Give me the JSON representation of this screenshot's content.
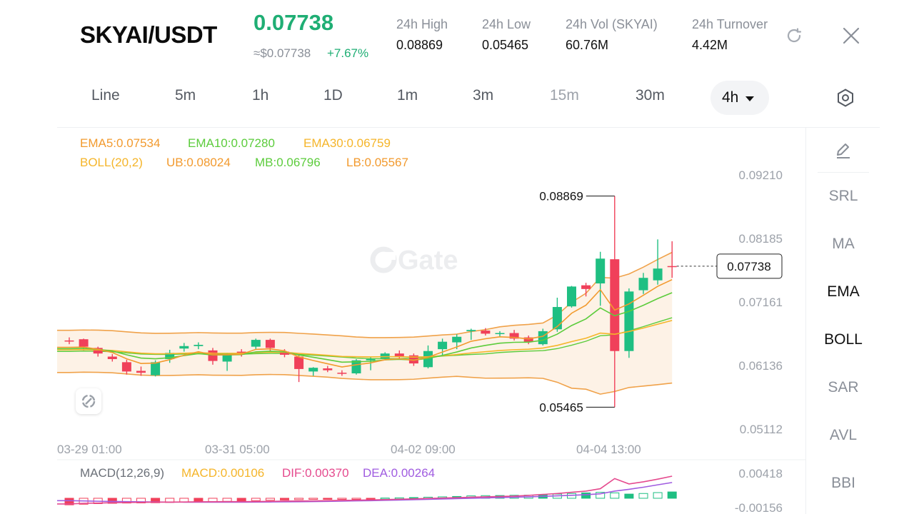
{
  "header": {
    "pair": "SKYAI/USDT",
    "price": "0.07738",
    "approx": "≈$0.07738",
    "change": "+7.67%",
    "stats": [
      {
        "label": "24h   High",
        "value": "0.08869"
      },
      {
        "label": "24h   Low",
        "value": "0.05465"
      },
      {
        "label": "24h   Vol (SKYAI)",
        "value": "60.76M"
      },
      {
        "label": "24h   Turnover",
        "value": "4.42M"
      }
    ],
    "icons": {
      "refresh": "refresh-icon",
      "close": "close-icon"
    }
  },
  "intervals": {
    "items": [
      "Line",
      "5m",
      "1h",
      "1D",
      "1m",
      "3m",
      "15m",
      "30m"
    ],
    "active": "4h",
    "settings_icon": "hexagon-settings-icon"
  },
  "legend": {
    "ema5": "EMA5:0.07534",
    "ema10": "EMA10:0.07280",
    "ema30": "EMA30:0.06759",
    "boll": "BOLL(20,2)",
    "ub": "UB:0.08024",
    "mb": "MB:0.06796",
    "lb": "LB:0.05567",
    "macd_title": "MACD(12,26,9)",
    "macd": "MACD:0.00106",
    "dif": "DIF:0.00370",
    "dea": "DEA:0.00264"
  },
  "watermark": "Gate",
  "side_panel": {
    "edit_icon": "pencil-icon",
    "items": [
      {
        "label": "SRL",
        "active": false
      },
      {
        "label": "MA",
        "active": false
      },
      {
        "label": "EMA",
        "active": true
      },
      {
        "label": "BOLL",
        "active": true
      },
      {
        "label": "SAR",
        "active": false
      },
      {
        "label": "AVL",
        "active": false
      },
      {
        "label": "BBI",
        "active": false
      }
    ]
  },
  "colors": {
    "up": "#1fbf82",
    "down": "#f0405a",
    "ema5": "#f29a2e",
    "ema10": "#5ccc3c",
    "ema30": "#f5b52a",
    "boll_band": "#f0a24a",
    "dif": "#e54a8e",
    "dea": "#a05ce0"
  },
  "chart_data": {
    "type": "candlestick",
    "y_ticks": [
      "0.09210",
      "0.08185",
      "0.07161",
      "0.06136",
      "0.05112"
    ],
    "y_range": [
      0.05112,
      0.0921
    ],
    "x_ticks": [
      "03-29 01:00",
      "03-31 05:00",
      "04-02 09:00",
      "04-04 13:00"
    ],
    "high_label": "0.08869",
    "low_label": "0.05465",
    "last_price_label": "0.07738",
    "candles": [
      {
        "o": 0.0654,
        "h": 0.0659,
        "l": 0.0648,
        "c": 0.0653
      },
      {
        "o": 0.0656,
        "h": 0.0657,
        "l": 0.0638,
        "c": 0.0644
      },
      {
        "o": 0.0642,
        "h": 0.0644,
        "l": 0.0628,
        "c": 0.0633
      },
      {
        "o": 0.0628,
        "h": 0.0632,
        "l": 0.062,
        "c": 0.0624
      },
      {
        "o": 0.0619,
        "h": 0.0623,
        "l": 0.0599,
        "c": 0.0604
      },
      {
        "o": 0.0605,
        "h": 0.0612,
        "l": 0.0597,
        "c": 0.0602
      },
      {
        "o": 0.0598,
        "h": 0.0622,
        "l": 0.0596,
        "c": 0.0619
      },
      {
        "o": 0.0624,
        "h": 0.0639,
        "l": 0.0618,
        "c": 0.0634
      },
      {
        "o": 0.0641,
        "h": 0.065,
        "l": 0.0636,
        "c": 0.0645
      },
      {
        "o": 0.0645,
        "h": 0.0651,
        "l": 0.064,
        "c": 0.0647
      },
      {
        "o": 0.0638,
        "h": 0.0642,
        "l": 0.0615,
        "c": 0.0621
      },
      {
        "o": 0.062,
        "h": 0.0634,
        "l": 0.0605,
        "c": 0.0631
      },
      {
        "o": 0.0636,
        "h": 0.064,
        "l": 0.0628,
        "c": 0.0634
      },
      {
        "o": 0.0644,
        "h": 0.0657,
        "l": 0.064,
        "c": 0.0655
      },
      {
        "o": 0.0655,
        "h": 0.0657,
        "l": 0.0637,
        "c": 0.0642
      },
      {
        "o": 0.0636,
        "h": 0.064,
        "l": 0.0627,
        "c": 0.0631
      },
      {
        "o": 0.0628,
        "h": 0.0632,
        "l": 0.0587,
        "c": 0.0608
      },
      {
        "o": 0.0604,
        "h": 0.0611,
        "l": 0.0597,
        "c": 0.061
      },
      {
        "o": 0.0609,
        "h": 0.0613,
        "l": 0.0603,
        "c": 0.0606
      },
      {
        "o": 0.0602,
        "h": 0.0606,
        "l": 0.0597,
        "c": 0.0601
      },
      {
        "o": 0.0601,
        "h": 0.0624,
        "l": 0.0599,
        "c": 0.0622
      },
      {
        "o": 0.0622,
        "h": 0.0628,
        "l": 0.0606,
        "c": 0.0624
      },
      {
        "o": 0.0625,
        "h": 0.0635,
        "l": 0.0624,
        "c": 0.0633
      },
      {
        "o": 0.0633,
        "h": 0.0638,
        "l": 0.0624,
        "c": 0.0628
      },
      {
        "o": 0.063,
        "h": 0.0633,
        "l": 0.0613,
        "c": 0.0617
      },
      {
        "o": 0.0611,
        "h": 0.0646,
        "l": 0.0609,
        "c": 0.0637
      },
      {
        "o": 0.064,
        "h": 0.0657,
        "l": 0.063,
        "c": 0.0652
      },
      {
        "o": 0.0651,
        "h": 0.0664,
        "l": 0.064,
        "c": 0.066
      },
      {
        "o": 0.0669,
        "h": 0.0673,
        "l": 0.0655,
        "c": 0.0671
      },
      {
        "o": 0.067,
        "h": 0.0674,
        "l": 0.0662,
        "c": 0.0665
      },
      {
        "o": 0.0666,
        "h": 0.0669,
        "l": 0.066,
        "c": 0.0666
      },
      {
        "o": 0.0666,
        "h": 0.0671,
        "l": 0.0654,
        "c": 0.0657
      },
      {
        "o": 0.0659,
        "h": 0.0662,
        "l": 0.0648,
        "c": 0.0652
      },
      {
        "o": 0.0648,
        "h": 0.0673,
        "l": 0.0646,
        "c": 0.0669
      },
      {
        "o": 0.0672,
        "h": 0.0723,
        "l": 0.0668,
        "c": 0.0708
      },
      {
        "o": 0.0709,
        "h": 0.0742,
        "l": 0.0707,
        "c": 0.0741
      },
      {
        "o": 0.0743,
        "h": 0.0747,
        "l": 0.0725,
        "c": 0.0737
      },
      {
        "o": 0.0746,
        "h": 0.0797,
        "l": 0.071,
        "c": 0.0786
      },
      {
        "o": 0.0785,
        "h": 0.08869,
        "l": 0.05465,
        "c": 0.0637
      },
      {
        "o": 0.0637,
        "h": 0.0738,
        "l": 0.0626,
        "c": 0.0733
      },
      {
        "o": 0.0735,
        "h": 0.0763,
        "l": 0.0729,
        "c": 0.0755
      },
      {
        "o": 0.0751,
        "h": 0.0817,
        "l": 0.0744,
        "c": 0.077
      },
      {
        "o": 0.0774,
        "h": 0.0814,
        "l": 0.0755,
        "c": 0.07738
      }
    ],
    "macd_ticks": [
      "0.00418",
      "-0.00156"
    ],
    "macd_range": [
      -0.00156,
      0.00418
    ],
    "macd_hist": [
      -0.0011,
      -0.001,
      -0.0009,
      -0.00085,
      -0.0008,
      -0.00078,
      -0.00075,
      -0.0007,
      -0.00065,
      -0.0006,
      -0.00056,
      -0.00052,
      -0.00048,
      -0.0004,
      -0.00034,
      -0.00028,
      -0.00022,
      -0.00016,
      -0.0001,
      -6e-05,
      -4e-05,
      -2e-05,
      4e-05,
      8e-05,
      0.00012,
      0.00018,
      0.00024,
      0.0003,
      0.0004,
      0.00044,
      0.00046,
      0.0005,
      0.00052,
      0.0006,
      0.0007,
      0.0008,
      0.0009,
      0.001,
      0.0009,
      0.0007,
      0.0008,
      0.00095,
      0.00106
    ],
    "dif": [
      -0.00095,
      -0.00085,
      -0.0008,
      -0.00075,
      -0.0007,
      -0.00068,
      -0.00066,
      -0.00064,
      -0.00062,
      -0.0006,
      -0.00058,
      -0.00057,
      -0.00056,
      -0.00055,
      -0.00052,
      -0.00048,
      -0.00046,
      -0.00044,
      -0.0004,
      -0.00036,
      -0.00032,
      -0.00028,
      -0.00022,
      -0.00016,
      -0.0001,
      -2e-05,
      4e-05,
      0.0001,
      0.00018,
      0.00024,
      0.0003,
      0.00036,
      0.00048,
      0.00064,
      0.0008,
      0.001,
      0.0012,
      0.0016,
      0.0033,
      0.0024,
      0.00275,
      0.0032,
      0.0037
    ],
    "dea": [
      -0.0004,
      -0.00045,
      -0.0005,
      -0.00054,
      -0.00057,
      -0.0006,
      -0.00062,
      -0.00064,
      -0.00065,
      -0.00066,
      -0.00066,
      -0.00066,
      -0.00065,
      -0.00064,
      -0.00062,
      -0.0006,
      -0.00058,
      -0.00055,
      -0.00052,
      -0.00048,
      -0.00044,
      -0.0004,
      -0.00035,
      -0.0003,
      -0.00024,
      -0.00018,
      -0.00012,
      -6e-05,
      0.0,
      6e-05,
      0.00012,
      0.00018,
      0.00024,
      0.00032,
      0.0004,
      0.0005,
      0.0006,
      0.00075,
      0.0012,
      0.0015,
      0.00185,
      0.00225,
      0.00264
    ]
  }
}
